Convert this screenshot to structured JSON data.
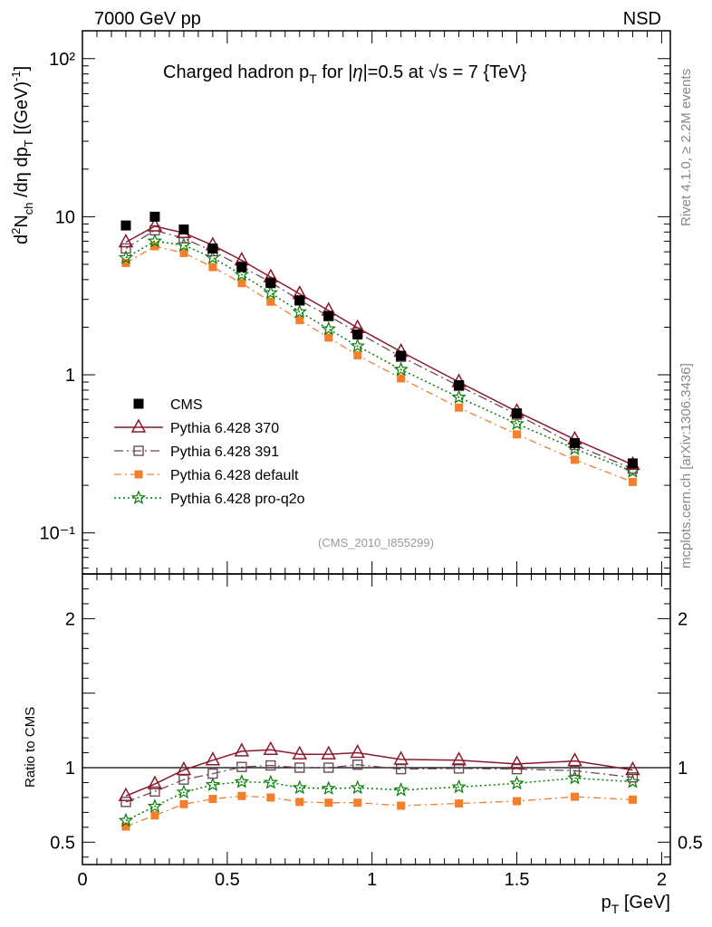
{
  "header": {
    "left": "7000 GeV pp",
    "right": "NSD"
  },
  "side_text": {
    "rivet": "Rivet 4.1.0, ≥ 2.2M events",
    "mcplots": "mcplots.cern.ch [arXiv:1306.3436]"
  },
  "colors": {
    "cms": "#000000",
    "p370": "#8b1a2b",
    "p391": "#6e4a5a",
    "pdef": "#f08030",
    "pq2o": "#008000"
  },
  "chart_data": [
    {
      "type": "line",
      "scale": "log",
      "title": "Charged hadron p_T for |η|=0.5 at √s = 7 {TeV}",
      "ylabel": "d²N_ch /dη dp_T [(GeV)⁻¹]",
      "xlim": [
        0,
        2.03
      ],
      "ylim": [
        0.055,
        150
      ],
      "yticks": [
        {
          "value": 0.1,
          "label": "10⁻¹"
        },
        {
          "value": 1,
          "label": "1"
        },
        {
          "value": 10,
          "label": "10"
        },
        {
          "value": 100,
          "label": "10²"
        }
      ],
      "analysis": "(CMS_2010_I855299)",
      "x": [
        0.15,
        0.25,
        0.35,
        0.45,
        0.55,
        0.65,
        0.75,
        0.85,
        0.95,
        1.1,
        1.3,
        1.5,
        1.7,
        1.9
      ],
      "series": [
        {
          "name": "CMS",
          "key": "cms",
          "values": [
            8.8,
            10.0,
            8.3,
            6.3,
            4.8,
            3.8,
            2.95,
            2.35,
            1.8,
            1.32,
            0.86,
            0.57,
            0.37,
            0.275
          ]
        },
        {
          "name": "Pythia 6.428 370",
          "key": "p370",
          "values": [
            6.9,
            8.7,
            7.9,
            6.6,
            5.3,
            4.15,
            3.25,
            2.55,
            1.98,
            1.4,
            0.9,
            0.585,
            0.39,
            0.27
          ]
        },
        {
          "name": "Pythia 6.428 391",
          "key": "p391",
          "values": [
            6.3,
            8.2,
            7.3,
            6.05,
            4.85,
            3.85,
            2.96,
            2.36,
            1.85,
            1.3,
            0.85,
            0.56,
            0.36,
            0.255
          ]
        },
        {
          "name": "Pythia 6.428 default",
          "key": "pdef",
          "values": [
            5.1,
            6.5,
            5.9,
            4.8,
            3.8,
            2.9,
            2.22,
            1.72,
            1.33,
            0.95,
            0.62,
            0.42,
            0.29,
            0.21
          ]
        },
        {
          "name": "Pythia 6.428 pro-q2o",
          "key": "pq2o",
          "values": [
            5.5,
            7.0,
            6.6,
            5.5,
            4.3,
            3.3,
            2.5,
            1.95,
            1.52,
            1.08,
            0.72,
            0.49,
            0.34,
            0.245
          ]
        }
      ]
    },
    {
      "type": "line",
      "scale": "linear",
      "ylabel": "Ratio to CMS",
      "xlabel": "p_T [GeV]",
      "xlim": [
        0,
        2.03
      ],
      "ylim": [
        0.35,
        2.3
      ],
      "yticks": [
        {
          "value": 0.5,
          "label": "0.5"
        },
        {
          "value": 1,
          "label": "1"
        },
        {
          "value": 2,
          "label": "2"
        }
      ],
      "xticks": [
        {
          "value": 0,
          "label": "0"
        },
        {
          "value": 0.5,
          "label": "0.5"
        },
        {
          "value": 1,
          "label": "1"
        },
        {
          "value": 1.5,
          "label": "1.5"
        },
        {
          "value": 2,
          "label": "2"
        }
      ],
      "x": [
        0.15,
        0.25,
        0.35,
        0.45,
        0.55,
        0.65,
        0.75,
        0.85,
        0.95,
        1.1,
        1.3,
        1.5,
        1.7,
        1.9
      ],
      "series": [
        {
          "name": "Pythia 6.428 370",
          "key": "p370",
          "values": [
            0.81,
            0.89,
            0.985,
            1.05,
            1.11,
            1.12,
            1.09,
            1.09,
            1.1,
            1.055,
            1.05,
            1.025,
            1.045,
            0.985
          ]
        },
        {
          "name": "Pythia 6.428 391",
          "key": "p391",
          "values": [
            0.77,
            0.84,
            0.92,
            0.96,
            1.005,
            1.015,
            1.0,
            1.0,
            1.02,
            0.99,
            0.995,
            0.99,
            0.98,
            0.935
          ]
        },
        {
          "name": "Pythia 6.428 default",
          "key": "pdef",
          "values": [
            0.605,
            0.68,
            0.755,
            0.79,
            0.81,
            0.8,
            0.77,
            0.765,
            0.765,
            0.745,
            0.76,
            0.775,
            0.805,
            0.785
          ]
        },
        {
          "name": "Pythia 6.428 pro-q2o",
          "key": "pq2o",
          "values": [
            0.645,
            0.74,
            0.835,
            0.885,
            0.905,
            0.9,
            0.865,
            0.86,
            0.865,
            0.85,
            0.87,
            0.895,
            0.93,
            0.905
          ]
        }
      ]
    }
  ]
}
